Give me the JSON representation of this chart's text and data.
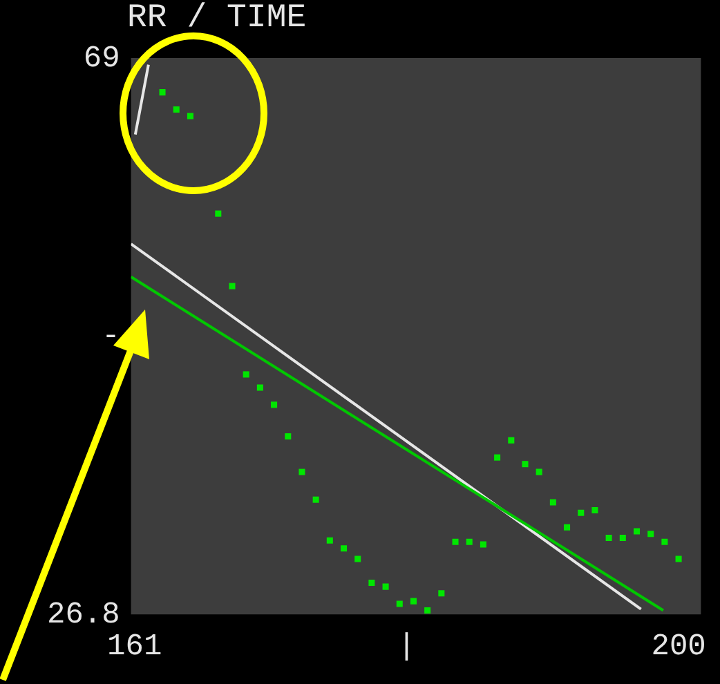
{
  "chart_data": {
    "type": "scatter",
    "title": "RR / TIME",
    "xlim": [
      160.75,
      201.6
    ],
    "ylim": [
      26.8,
      69
    ],
    "xticks": [
      161,
      {
        "value": 180.5,
        "label": "|"
      },
      200
    ],
    "yticks": [
      69,
      {
        "value": 47.9,
        "label": "-"
      },
      26.8
    ],
    "grid": false,
    "series": [
      {
        "color": "#00e600",
        "marker": "square",
        "x": [
          163,
          164,
          165,
          167,
          168,
          169,
          170,
          171,
          172,
          173,
          174,
          175,
          176,
          177,
          178,
          179,
          180,
          181,
          182,
          183,
          184,
          185,
          186,
          187,
          188,
          189,
          190,
          191,
          192,
          193,
          194,
          195,
          196,
          197,
          198,
          199,
          200
        ],
        "values": [
          66.4,
          65.1,
          64.6,
          57.2,
          51.7,
          45.0,
          44.0,
          42.7,
          40.3,
          37.6,
          35.5,
          32.4,
          31.8,
          31.0,
          29.2,
          28.9,
          27.6,
          27.8,
          27.1,
          28.4,
          32.3,
          32.3,
          32.1,
          38.7,
          40.0,
          38.2,
          37.6,
          35.3,
          33.4,
          34.5,
          34.7,
          32.6,
          32.6,
          33.1,
          32.9,
          32.3,
          31.0
        ]
      },
      {
        "type": "line",
        "color": "#00c800",
        "marker": "none",
        "x": [
          160.75,
          198.9
        ],
        "values": [
          52.4,
          27.1
        ]
      },
      {
        "type": "line",
        "color": "#e6e6e6",
        "marker": "none",
        "x": [
          160.75,
          197.3
        ],
        "values": [
          54.9,
          27.2
        ]
      },
      {
        "type": "line",
        "color": "#e6e6e6",
        "marker": "none",
        "x": [
          161.06,
          162
        ],
        "values": [
          63.2,
          68.5
        ]
      }
    ]
  }
}
